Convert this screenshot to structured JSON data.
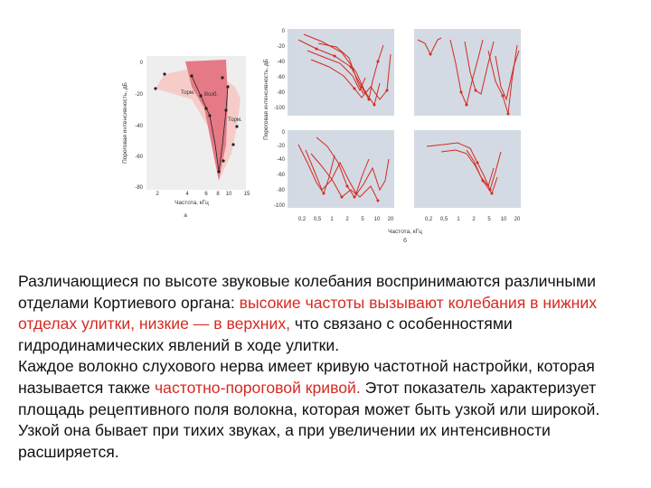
{
  "figure_a": {
    "y_axis_label": "Пороговая интенсивность, дБ",
    "x_axis_label": "Частота, кГц",
    "panel_letter": "а",
    "y_ticks": [
      "0",
      "-20",
      "-40",
      "-60",
      "-80"
    ],
    "x_ticks": [
      "2",
      "4",
      "6",
      "8",
      "10",
      "15"
    ],
    "region_labels": {
      "inhibit_left": "Торм.",
      "excite": "Возб.",
      "inhibit_right": "Торм."
    },
    "colors": {
      "excite": "#e57a86",
      "inhibit": "#f6ccc9",
      "panel_bg": "#eeeeef"
    }
  },
  "figure_b": {
    "y_axis_label": "Пороговая интенсивность, дБ",
    "x_axis_label": "Частота, кГц",
    "panel_letter": "б",
    "top_y_ticks": [
      "0",
      "-20",
      "-40",
      "-60",
      "-80",
      "-100"
    ],
    "bottom_y_ticks": [
      "0",
      "-20",
      "-40",
      "-60",
      "-80",
      "-100"
    ],
    "x_ticks": [
      "0,2",
      "0,5",
      "1",
      "2",
      "5",
      "10",
      "20"
    ],
    "colors": {
      "curve": "#d42a22",
      "panel_bg": "#d3dae3"
    }
  },
  "text": {
    "p1_a": " Различающиеся по высоте звуковые колебания воспринимаются различными отделами Кортиевого органа: ",
    "p1_hl": "высокие частоты вызывают колебания в нижних отделах улитки, низкие — в верхних,",
    "p1_b": " что связано с особенностями гидродинамических явлений в ходе улитки.",
    "p2_a": "Каждое волокно слухового нерва имеет кривую частотной настройки, которая называется также ",
    "p2_hl": "частотно-пороговой кривой.",
    "p2_b": " Этот показатель характеризует площадь рецептивного поля волокна, которая может быть узкой или широкой. Узкой она бывает при тихих звуках, а при увеличении их интенсивности расширяется."
  }
}
